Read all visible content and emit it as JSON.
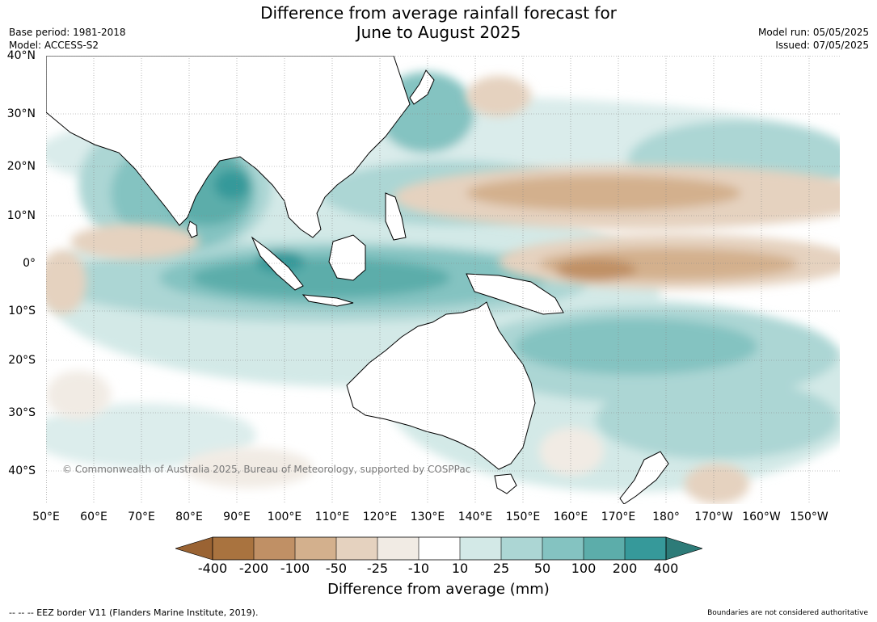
{
  "header": {
    "title_line1": "Difference from average rainfall forecast for",
    "title_line2": "June to August 2025",
    "base_period": "Base period: 1981-2018",
    "model": "Model: ACCESS-S2",
    "model_run": "Model run: 05/05/2025",
    "issued": "Issued: 07/05/2025"
  },
  "map": {
    "lat_labels": [
      "40°N",
      "30°N",
      "20°N",
      "10°N",
      "0°",
      "10°S",
      "20°S",
      "30°S",
      "40°S"
    ],
    "lon_labels": [
      "50°E",
      "60°E",
      "70°E",
      "80°E",
      "90°E",
      "100°E",
      "110°E",
      "120°E",
      "130°E",
      "140°E",
      "150°E",
      "160°E",
      "170°E",
      "180°",
      "170°W",
      "160°W",
      "150°W"
    ],
    "copyright": "© Commonwealth of Australia 2025, Bureau of Meteorology, supported by COSPPac"
  },
  "colorbar": {
    "title": "Difference from average (mm)",
    "tick_labels": [
      "-400",
      "-200",
      "-100",
      "-50",
      "-25",
      "-10",
      "10",
      "25",
      "50",
      "100",
      "200",
      "400"
    ],
    "colors": {
      "dry_extreme": "#9a6333",
      "dry_400": "#a9733f",
      "dry_200": "#c09065",
      "dry_100": "#d3b08d",
      "dry_50": "#e5d2bf",
      "dry_25": "#f1ebe4",
      "neutral": "#ffffff",
      "wet_25": "#d3e9e7",
      "wet_50": "#acd6d4",
      "wet_100": "#84c3c1",
      "wet_200": "#5cadaa",
      "wet_400": "#36999a",
      "wet_extreme": "#2d7b78"
    }
  },
  "footer": {
    "eez_note": "--  --  -- EEZ border V11 (Flanders Marine Institute, 2019).",
    "boundaries_note": "Boundaries are not considered authoritative"
  }
}
